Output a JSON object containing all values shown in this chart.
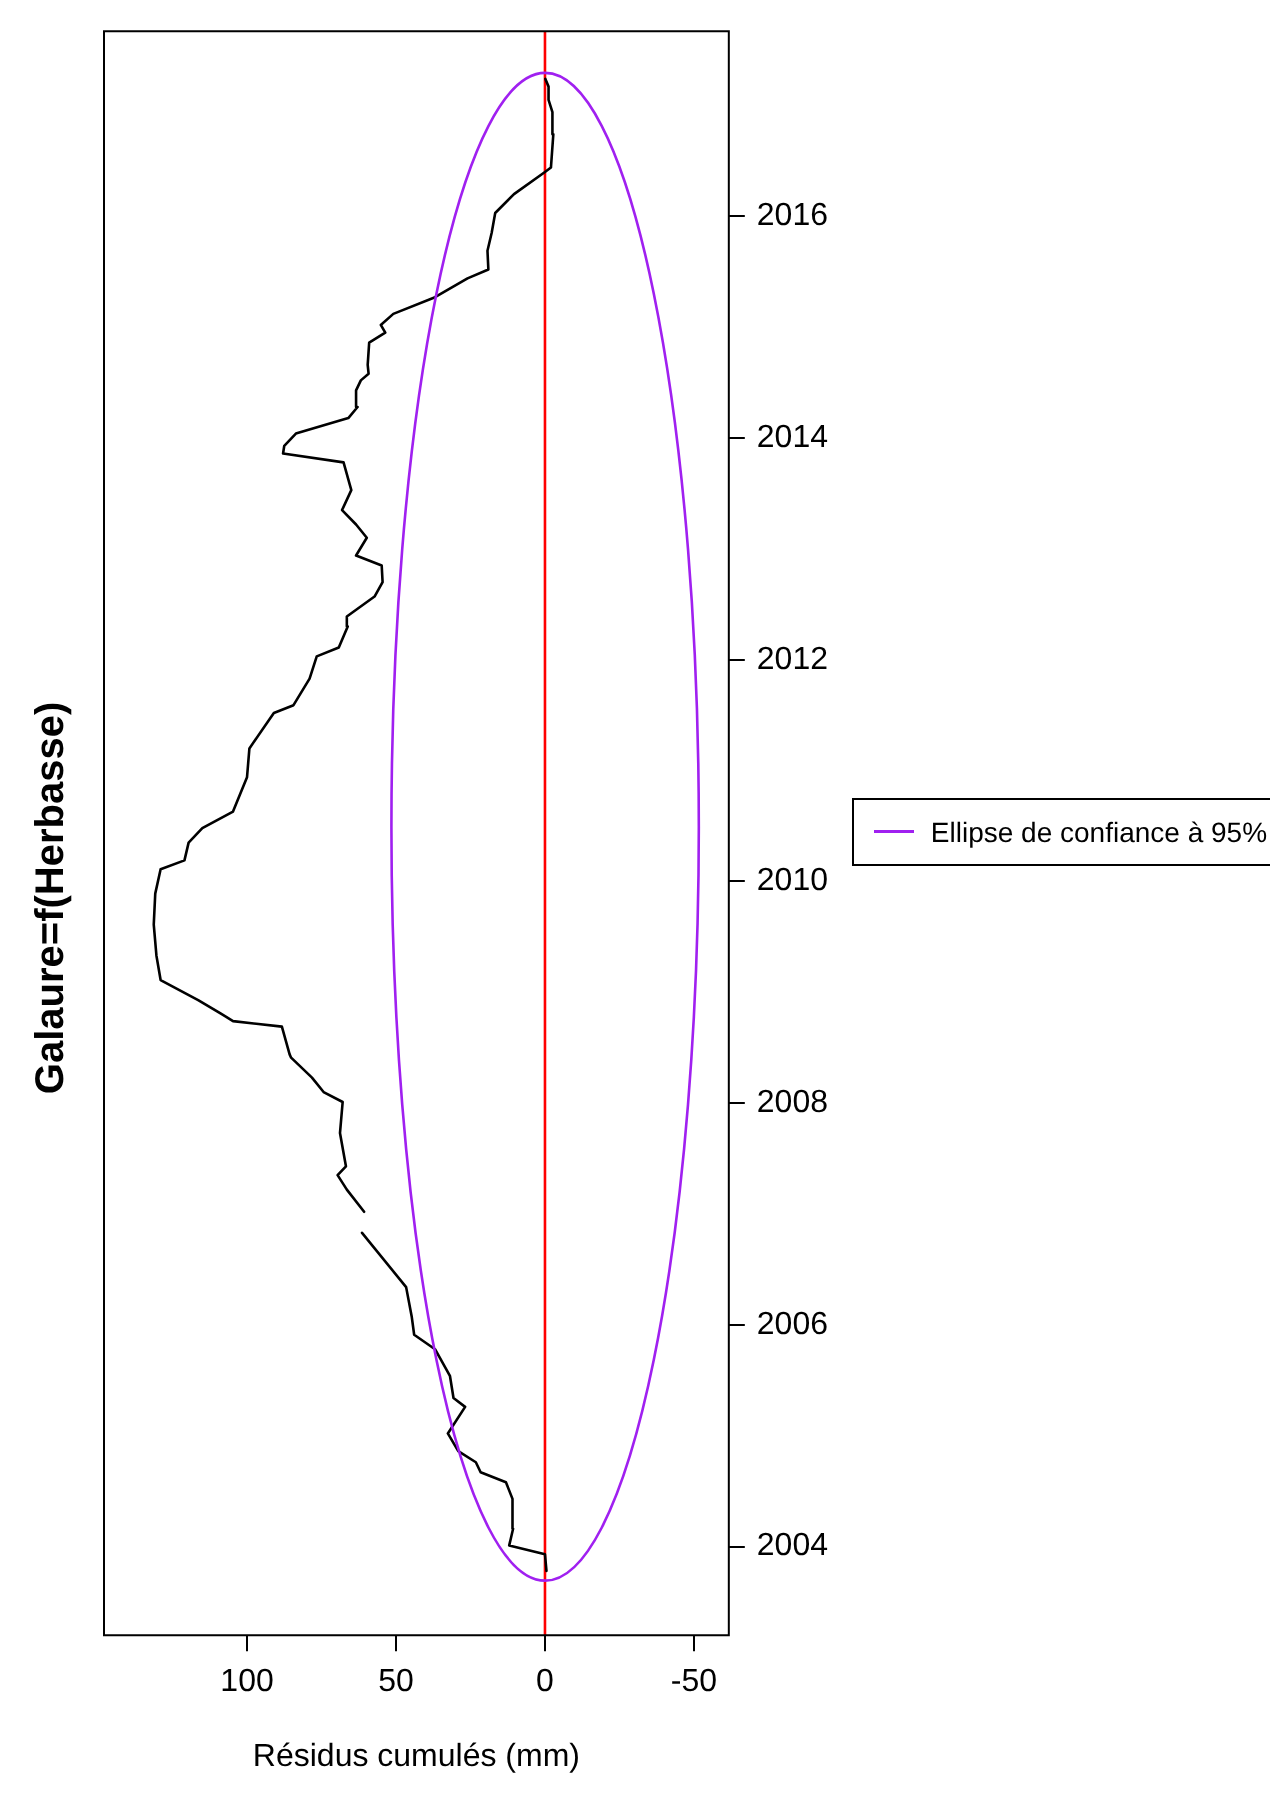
{
  "chart_data": {
    "type": "line",
    "title": "Galaure=f(Herbasse)",
    "xlabel": "Résidus cumulés (mm)",
    "xlim": [
      148,
      -61.7
    ],
    "xticks": [
      100,
      50,
      0,
      -50
    ],
    "ylim": [
      2003.2,
      2017.67
    ],
    "yticks": [
      2004,
      2006,
      2008,
      2010,
      2012,
      2014,
      2016
    ],
    "grid": false,
    "marker": "none",
    "line_style": "solid",
    "annotations": [
      "Ellipse de confiance à 95%"
    ],
    "ref_lines": [
      {
        "axis": "x",
        "value": 0,
        "color": "#ff0000"
      }
    ],
    "series": [
      {
        "color": "#000000",
        "x": [
          -0.5,
          0,
          12,
          10.7,
          10.9,
          13.1,
          21.6,
          23.2,
          29.1,
          32.6,
          26.8,
          30.7,
          31.9,
          36.9,
          43.9,
          44.7,
          46.6,
          61.4,
          61,
          60.7,
          66.5,
          69.6,
          66.8,
          68.8,
          67.9,
          74.3,
          78.2,
          85.2,
          85.7,
          88.3,
          104.7,
          108.9,
          116.4,
          129,
          130.4,
          131.3,
          130.8,
          129,
          121,
          119.6,
          115,
          104.7,
          100,
          99.2,
          91,
          84.4,
          79,
          76.6,
          69.2,
          66.2,
          66.5,
          57.2,
          54.5,
          54.8,
          63.4,
          59.8,
          63.4,
          68.1,
          65,
          67.6,
          87.9,
          87.5,
          83.6,
          66,
          62.9,
          63.4,
          61.8,
          59.2,
          59.5,
          59,
          53.6,
          55.1,
          50.9,
          36.9,
          26,
          19,
          19.3,
          17.9,
          16.7,
          10.4,
          0,
          -2,
          -2.8,
          -2.5,
          -1.2,
          -1.2,
          -0.1
        ],
        "values": [
          2003.78,
          2003.93,
          2004.01,
          2004.16,
          2004.43,
          2004.58,
          2004.67,
          2004.76,
          2004.86,
          2005.02,
          2005.26,
          2005.34,
          2005.54,
          2005.78,
          2005.91,
          2006.07,
          2006.34,
          2006.83,
          null,
          2007.02,
          2007.22,
          2007.35,
          2007.43,
          2007.73,
          2008.01,
          2008.1,
          2008.23,
          2008.41,
          2008.44,
          2008.69,
          2008.74,
          2008.81,
          2008.93,
          2009.11,
          2009.33,
          2009.61,
          2009.89,
          2010.11,
          2010.19,
          2010.35,
          2010.48,
          2010.63,
          2010.94,
          2011.2,
          2011.52,
          2011.59,
          2011.83,
          2012.03,
          2012.11,
          2012.3,
          2012.39,
          2012.57,
          2012.7,
          2012.85,
          2012.94,
          2013.1,
          2013.22,
          2013.35,
          2013.53,
          2013.78,
          2013.86,
          2013.93,
          2014.04,
          2014.18,
          2014.28,
          2014.43,
          2014.52,
          2014.58,
          2014.66,
          2014.86,
          2014.95,
          2015.02,
          2015.12,
          2015.27,
          2015.44,
          2015.52,
          2015.69,
          2015.85,
          2016.03,
          2016.2,
          2016.4,
          2016.44,
          2016.74,
          2016.94,
          2017.05,
          2017.17,
          2017.24
        ]
      }
    ]
  }
}
